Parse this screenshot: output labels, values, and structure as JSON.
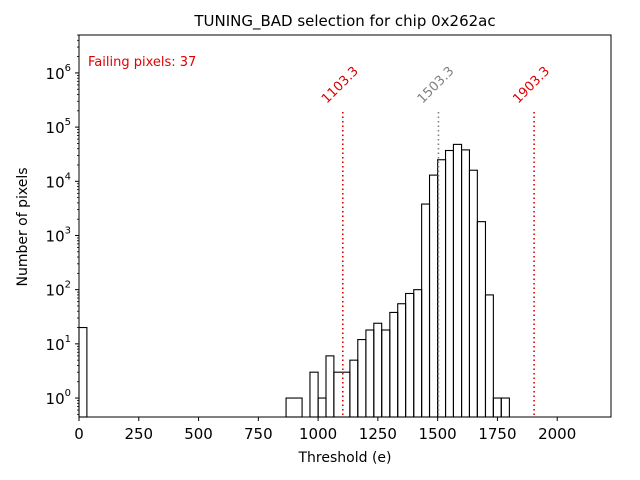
{
  "chart_data": {
    "type": "histogram",
    "title": "TUNING_BAD selection for chip 0x262ac",
    "xlabel": "Threshold (e)",
    "ylabel": "Number of pixels",
    "xlim": [
      0,
      2225
    ],
    "ylim_log10": [
      -0.35,
      6.7
    ],
    "yscale": "log",
    "x_ticks": [
      0,
      250,
      500,
      750,
      1000,
      1250,
      1500,
      1750,
      2000
    ],
    "y_ticks": [
      {
        "exp": 0,
        "base": "10",
        "sup": "0"
      },
      {
        "exp": 1,
        "base": "10",
        "sup": "1"
      },
      {
        "exp": 2,
        "base": "10",
        "sup": "2"
      },
      {
        "exp": 3,
        "base": "10",
        "sup": "3"
      },
      {
        "exp": 4,
        "base": "10",
        "sup": "4"
      },
      {
        "exp": 5,
        "base": "10",
        "sup": "5"
      },
      {
        "exp": 6,
        "base": "10",
        "sup": "6"
      }
    ],
    "bins": [
      {
        "x0": 0,
        "x1": 33,
        "count": 20
      },
      {
        "x0": 866,
        "x1": 933,
        "count": 1
      },
      {
        "x0": 933,
        "x1": 966,
        "count": 0
      },
      {
        "x0": 966,
        "x1": 1000,
        "count": 3
      },
      {
        "x0": 1000,
        "x1": 1033,
        "count": 1
      },
      {
        "x0": 1033,
        "x1": 1066,
        "count": 6
      },
      {
        "x0": 1066,
        "x1": 1133,
        "count": 3
      },
      {
        "x0": 1133,
        "x1": 1166,
        "count": 5
      },
      {
        "x0": 1166,
        "x1": 1200,
        "count": 12
      },
      {
        "x0": 1200,
        "x1": 1233,
        "count": 18
      },
      {
        "x0": 1233,
        "x1": 1266,
        "count": 24
      },
      {
        "x0": 1266,
        "x1": 1300,
        "count": 18
      },
      {
        "x0": 1300,
        "x1": 1333,
        "count": 38
      },
      {
        "x0": 1333,
        "x1": 1366,
        "count": 55
      },
      {
        "x0": 1366,
        "x1": 1400,
        "count": 85
      },
      {
        "x0": 1400,
        "x1": 1433,
        "count": 100
      },
      {
        "x0": 1433,
        "x1": 1466,
        "count": 3800
      },
      {
        "x0": 1466,
        "x1": 1500,
        "count": 13000
      },
      {
        "x0": 1500,
        "x1": 1533,
        "count": 25000
      },
      {
        "x0": 1533,
        "x1": 1566,
        "count": 37000
      },
      {
        "x0": 1566,
        "x1": 1600,
        "count": 48000
      },
      {
        "x0": 1600,
        "x1": 1633,
        "count": 38000
      },
      {
        "x0": 1633,
        "x1": 1666,
        "count": 16000
      },
      {
        "x0": 1666,
        "x1": 1700,
        "count": 1800
      },
      {
        "x0": 1700,
        "x1": 1733,
        "count": 80
      },
      {
        "x0": 1733,
        "x1": 1766,
        "count": 1
      },
      {
        "x0": 1766,
        "x1": 1800,
        "count": 1
      }
    ],
    "vlines": [
      {
        "x": 1103.3,
        "label": "1103.3",
        "color": "#e00000",
        "style": "dotted"
      },
      {
        "x": 1503.3,
        "label": "1503.3",
        "color": "#808080",
        "style": "dotted"
      },
      {
        "x": 1903.3,
        "label": "1903.3",
        "color": "#e00000",
        "style": "dotted"
      }
    ],
    "annotation": {
      "text": "Failing pixels: 37",
      "color": "#e00000",
      "position": "top-left"
    },
    "line_color": "#000000"
  }
}
